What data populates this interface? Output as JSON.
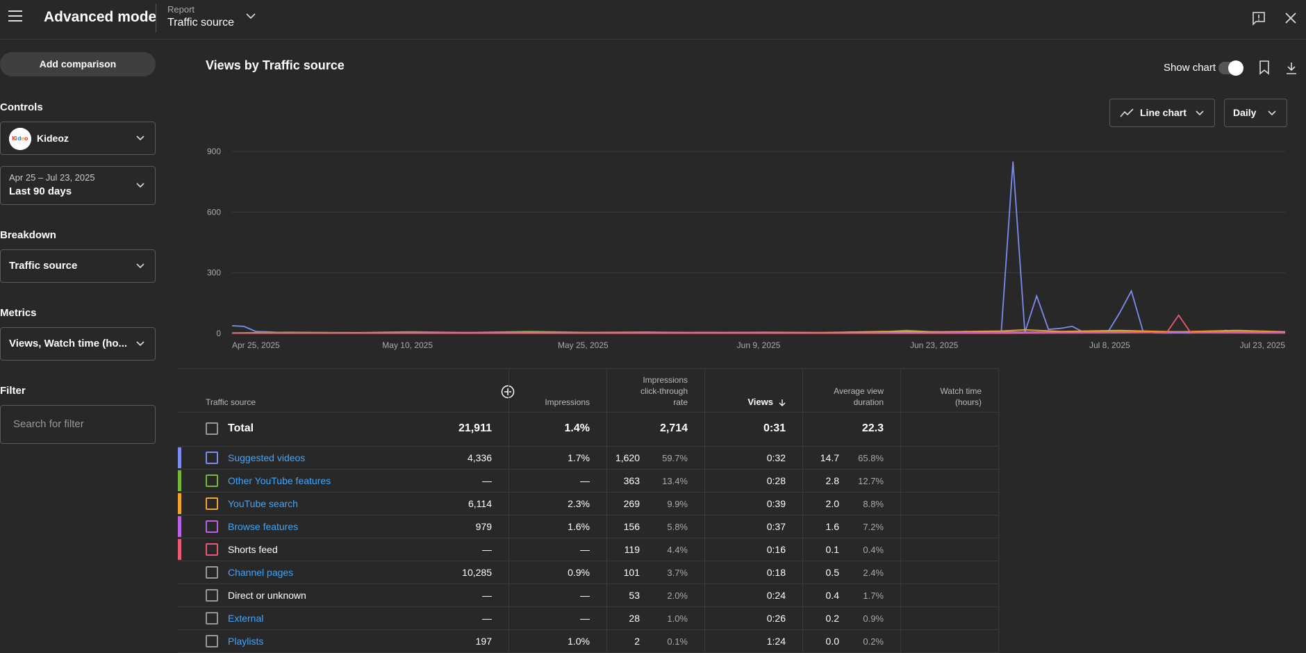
{
  "header": {
    "app_title": "Advanced mode",
    "report_caption": "Report",
    "report_value": "Traffic source"
  },
  "sidebar": {
    "add_comparison": "Add comparison",
    "controls_label": "Controls",
    "channel_name": "Kideoz",
    "date_range_sub": "Apr 25 – Jul 23, 2025",
    "date_range_main": "Last 90 days",
    "breakdown_label": "Breakdown",
    "breakdown_value": "Traffic source",
    "metrics_label": "Metrics",
    "metrics_value": "Views, Watch time (ho...",
    "filter_label": "Filter",
    "filter_placeholder": "Search for filter"
  },
  "main": {
    "title": "Views by Traffic source",
    "show_chart_label": "Show chart",
    "show_chart_on": true,
    "chart_type_label": "Line chart",
    "granularity_label": "Daily"
  },
  "chart_data": {
    "type": "line",
    "title": "Views by Traffic source",
    "ylim": [
      0,
      900
    ],
    "y_ticks": [
      "0",
      "300",
      "600",
      "900"
    ],
    "x_tick_labels": [
      "Apr 25, 2025",
      "May 10, 2025",
      "May 25, 2025",
      "Jun 9, 2025",
      "Jun 23, 2025",
      "Jul 8, 2025",
      "Jul 23, 2025"
    ],
    "grid": true,
    "series": [
      {
        "color": "#7c8cf0",
        "points": [
          [
            0,
            38
          ],
          [
            1,
            35
          ],
          [
            2,
            10
          ],
          [
            3,
            8
          ],
          [
            4,
            5
          ],
          [
            10,
            4
          ],
          [
            20,
            3
          ],
          [
            30,
            4
          ],
          [
            40,
            3
          ],
          [
            50,
            2
          ],
          [
            60,
            5
          ],
          [
            61,
            3
          ],
          [
            62,
            10
          ],
          [
            63,
            4
          ],
          [
            64,
            3
          ],
          [
            65,
            2
          ],
          [
            66,
            850
          ],
          [
            67,
            5
          ],
          [
            68,
            185
          ],
          [
            69,
            20
          ],
          [
            70,
            25
          ],
          [
            71,
            35
          ],
          [
            72,
            5
          ],
          [
            73,
            3
          ],
          [
            74,
            5
          ],
          [
            75,
            100
          ],
          [
            76,
            210
          ],
          [
            77,
            8
          ],
          [
            78,
            3
          ],
          [
            79,
            2
          ],
          [
            80,
            3
          ],
          [
            81,
            2
          ],
          [
            82,
            4
          ],
          [
            83,
            3
          ],
          [
            84,
            15
          ],
          [
            85,
            4
          ],
          [
            86,
            3
          ],
          [
            88,
            2
          ],
          [
            89,
            3
          ]
        ]
      },
      {
        "color": "#76b83a",
        "points": [
          [
            0,
            3
          ],
          [
            5,
            6
          ],
          [
            10,
            3
          ],
          [
            15,
            8
          ],
          [
            20,
            4
          ],
          [
            25,
            10
          ],
          [
            30,
            5
          ],
          [
            35,
            7
          ],
          [
            40,
            3
          ],
          [
            45,
            6
          ],
          [
            50,
            4
          ],
          [
            55,
            8
          ],
          [
            57,
            15
          ],
          [
            60,
            5
          ],
          [
            65,
            8
          ],
          [
            70,
            6
          ],
          [
            75,
            10
          ],
          [
            80,
            8
          ],
          [
            85,
            12
          ],
          [
            89,
            6
          ]
        ]
      },
      {
        "color": "#f2a32d",
        "points": [
          [
            0,
            2
          ],
          [
            10,
            3
          ],
          [
            20,
            4
          ],
          [
            30,
            3
          ],
          [
            40,
            5
          ],
          [
            50,
            4
          ],
          [
            55,
            10
          ],
          [
            60,
            8
          ],
          [
            65,
            12
          ],
          [
            67,
            18
          ],
          [
            70,
            10
          ],
          [
            75,
            15
          ],
          [
            77,
            12
          ],
          [
            80,
            8
          ],
          [
            85,
            15
          ],
          [
            88,
            10
          ],
          [
            89,
            8
          ]
        ]
      },
      {
        "color": "#b964e6",
        "points": [
          [
            0,
            2
          ],
          [
            10,
            2
          ],
          [
            20,
            3
          ],
          [
            30,
            2
          ],
          [
            40,
            3
          ],
          [
            50,
            2
          ],
          [
            60,
            3
          ],
          [
            65,
            5
          ],
          [
            70,
            4
          ],
          [
            75,
            6
          ],
          [
            80,
            5
          ],
          [
            85,
            8
          ],
          [
            89,
            4
          ]
        ]
      },
      {
        "color": "#ea5a72",
        "points": [
          [
            0,
            1
          ],
          [
            30,
            1
          ],
          [
            60,
            1
          ],
          [
            66,
            1
          ],
          [
            70,
            2
          ],
          [
            75,
            3
          ],
          [
            79,
            5
          ],
          [
            80,
            90
          ],
          [
            81,
            5
          ],
          [
            82,
            3
          ],
          [
            89,
            2
          ]
        ]
      }
    ]
  },
  "table": {
    "headers": {
      "source": "Traffic source",
      "impressions": "Impressions",
      "ctr": [
        "Impressions",
        "click-through",
        "rate"
      ],
      "views": "Views",
      "avd": [
        "Average view",
        "duration"
      ],
      "watch": [
        "Watch time",
        "(hours)"
      ]
    },
    "total": {
      "label": "Total",
      "impressions": "21,911",
      "ctr": "1.4%",
      "views": "2,714",
      "avd": "0:31",
      "watch": "22.3"
    },
    "rows": [
      {
        "source": "Suggested videos",
        "link": true,
        "color": "#7c8cf0",
        "impressions": "4,336",
        "ctr": "1.7%",
        "views": "1,620",
        "views_pct": "59.7%",
        "avd": "0:32",
        "watch": "14.7",
        "watch_pct": "65.8%"
      },
      {
        "source": "Other YouTube features",
        "link": true,
        "color": "#76b83a",
        "impressions": "—",
        "ctr": "—",
        "views": "363",
        "views_pct": "13.4%",
        "avd": "0:28",
        "watch": "2.8",
        "watch_pct": "12.7%"
      },
      {
        "source": "YouTube search",
        "link": true,
        "color": "#f2a32d",
        "impressions": "6,114",
        "ctr": "2.3%",
        "views": "269",
        "views_pct": "9.9%",
        "avd": "0:39",
        "watch": "2.0",
        "watch_pct": "8.8%"
      },
      {
        "source": "Browse features",
        "link": true,
        "color": "#b964e6",
        "impressions": "979",
        "ctr": "1.6%",
        "views": "156",
        "views_pct": "5.8%",
        "avd": "0:37",
        "watch": "1.6",
        "watch_pct": "7.2%"
      },
      {
        "source": "Shorts feed",
        "link": false,
        "color": "#ea5a72",
        "impressions": "—",
        "ctr": "—",
        "views": "119",
        "views_pct": "4.4%",
        "avd": "0:16",
        "watch": "0.1",
        "watch_pct": "0.4%"
      },
      {
        "source": "Channel pages",
        "link": true,
        "color": "",
        "impressions": "10,285",
        "ctr": "0.9%",
        "views": "101",
        "views_pct": "3.7%",
        "avd": "0:18",
        "watch": "0.5",
        "watch_pct": "2.4%"
      },
      {
        "source": "Direct or unknown",
        "link": false,
        "color": "",
        "impressions": "—",
        "ctr": "—",
        "views": "53",
        "views_pct": "2.0%",
        "avd": "0:24",
        "watch": "0.4",
        "watch_pct": "1.7%"
      },
      {
        "source": "External",
        "link": true,
        "color": "",
        "impressions": "—",
        "ctr": "—",
        "views": "28",
        "views_pct": "1.0%",
        "avd": "0:26",
        "watch": "0.2",
        "watch_pct": "0.9%"
      },
      {
        "source": "Playlists",
        "link": true,
        "color": "",
        "impressions": "197",
        "ctr": "1.0%",
        "views": "2",
        "views_pct": "0.1%",
        "avd": "1:24",
        "watch": "0.0",
        "watch_pct": "0.2%"
      }
    ]
  }
}
